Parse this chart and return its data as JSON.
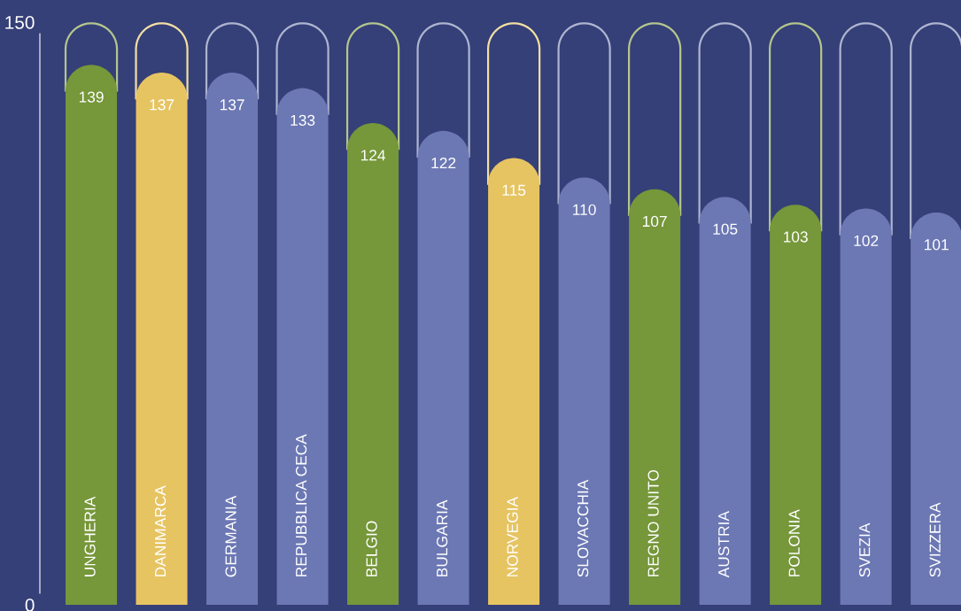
{
  "chart_data": {
    "type": "bar",
    "categories": [
      "UNGHERIA",
      "DANIMARCA",
      "GERMANIA",
      "REPUBBLICA CECA",
      "BELGIO",
      "BULGARIA",
      "NORVEGIA",
      "SLOVACCHIA",
      "REGNO UNITO",
      "AUSTRIA",
      "POLONIA",
      "SVEZIA",
      "SVIZZERA"
    ],
    "values": [
      139,
      137,
      137,
      133,
      124,
      122,
      115,
      110,
      107,
      105,
      103,
      102,
      101
    ],
    "colors": [
      "#76973a",
      "#e6c462",
      "#6c78b4",
      "#6c78b4",
      "#76973a",
      "#6c78b4",
      "#e6c462",
      "#6c78b4",
      "#76973a",
      "#6c78b4",
      "#76973a",
      "#6c78b4",
      "#6c78b4"
    ],
    "ylim": [
      0,
      150
    ],
    "yticks": [
      0,
      150
    ],
    "grid": false,
    "data_labels": true
  }
}
